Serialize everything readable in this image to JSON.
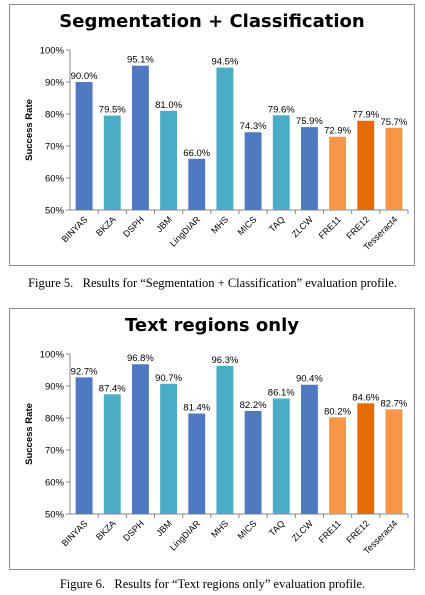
{
  "figures": [
    {
      "caption": "Figure 5.   Results for “Segmentation + Classification” evaluation profile.",
      "chart_data": {
        "type": "bar",
        "title": "Segmentation + Classification",
        "ylabel": "Success Rate",
        "xlabel": "",
        "ylim": [
          50,
          100
        ],
        "yticks": [
          "50%",
          "60%",
          "70%",
          "80%",
          "90%",
          "100%"
        ],
        "grid": false,
        "legend": "none",
        "categories": [
          "BINYAS",
          "BKZA",
          "DSPH",
          "JBM",
          "LingDIAR",
          "MHS",
          "MICS",
          "TAQ",
          "ZLCW",
          "FRE11",
          "FRE12",
          "Tesseract4"
        ],
        "values": [
          90.0,
          79.5,
          95.1,
          81.0,
          66.0,
          94.5,
          74.3,
          79.6,
          75.9,
          72.9,
          77.9,
          75.7
        ],
        "labels": [
          "90.0%",
          "79.5%",
          "95.1%",
          "81.0%",
          "66.0%",
          "94.5%",
          "74.3%",
          "79.6%",
          "75.9%",
          "72.9%",
          "77.9%",
          "75.7%"
        ],
        "colors": [
          "#4f79c0",
          "#4bacc6",
          "#4f79c0",
          "#4bacc6",
          "#4f79c0",
          "#4bacc6",
          "#4f79c0",
          "#4bacc6",
          "#4f79c0",
          "#f79646",
          "#e36c09",
          "#f79646"
        ]
      }
    },
    {
      "caption": "Figure 6.   Results for “Text regions only” evaluation profile.",
      "chart_data": {
        "type": "bar",
        "title": "Text regions only",
        "ylabel": "Success Rate",
        "xlabel": "",
        "ylim": [
          50,
          100
        ],
        "yticks": [
          "50%",
          "60%",
          "70%",
          "80%",
          "90%",
          "100%"
        ],
        "grid": false,
        "legend": "none",
        "categories": [
          "BINYAS",
          "BKZA",
          "DSPH",
          "JBM",
          "LingDIAR",
          "MHS",
          "MICS",
          "TAQ",
          "ZLCW",
          "FRE11",
          "FRE12",
          "Tesseract4"
        ],
        "values": [
          92.7,
          87.4,
          96.8,
          90.7,
          81.4,
          96.3,
          82.2,
          86.1,
          90.4,
          80.2,
          84.6,
          82.7
        ],
        "labels": [
          "92.7%",
          "87.4%",
          "96.8%",
          "90.7%",
          "81.4%",
          "96.3%",
          "82.2%",
          "86.1%",
          "90.4%",
          "80.2%",
          "84.6%",
          "82.7%"
        ],
        "colors": [
          "#4f79c0",
          "#4bacc6",
          "#4f79c0",
          "#4bacc6",
          "#4f79c0",
          "#4bacc6",
          "#4f79c0",
          "#4bacc6",
          "#4f79c0",
          "#f79646",
          "#e36c09",
          "#f79646"
        ]
      }
    }
  ]
}
